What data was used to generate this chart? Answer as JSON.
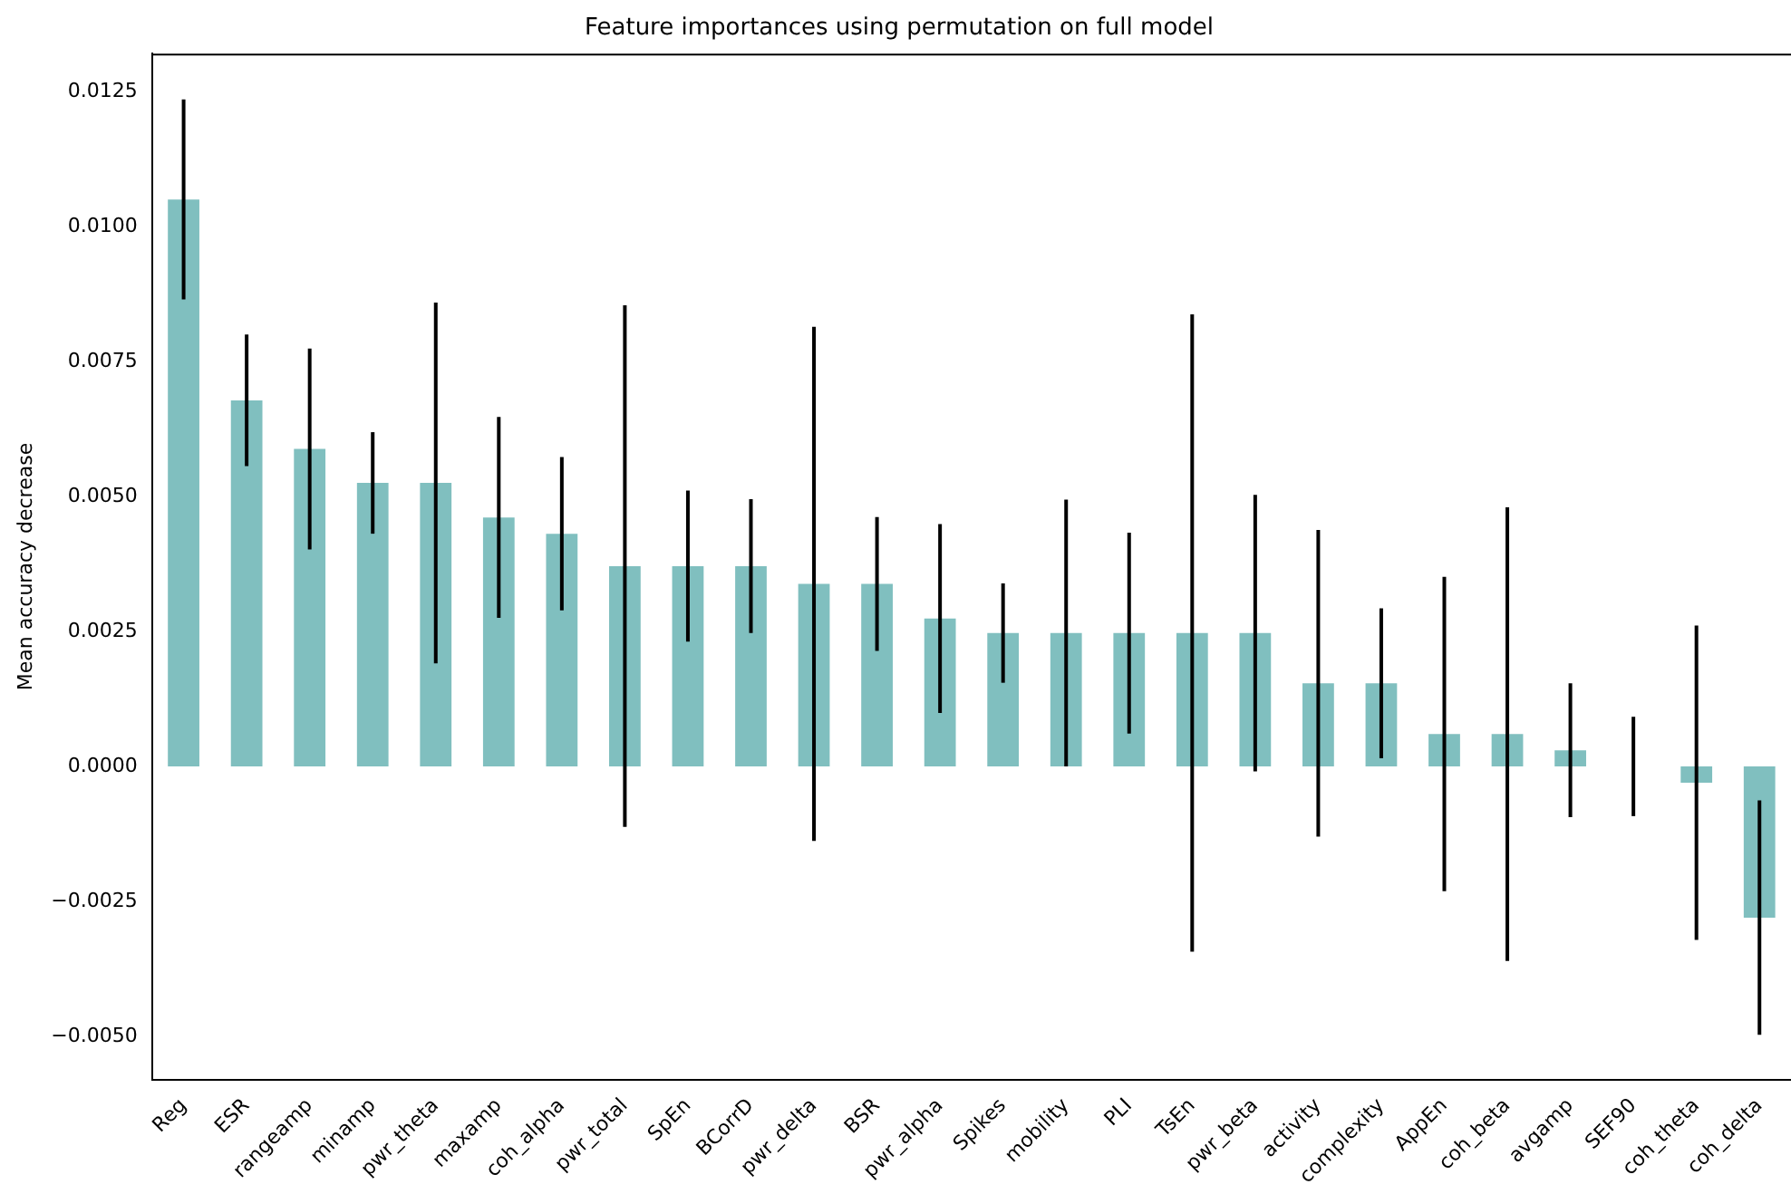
{
  "chart_data": {
    "type": "bar",
    "title": "Feature importances using permutation on full model",
    "ylabel": "Mean accuracy decrease",
    "categories": [
      "Reg",
      "ESR",
      "rangeamp",
      "minamp",
      "pwr_theta",
      "maxamp",
      "coh_alpha",
      "pwr_total",
      "SpEn",
      "BCorrD",
      "pwr_delta",
      "BSR",
      "pwr_alpha",
      "Spikes",
      "mobility",
      "PLI",
      "TsEn",
      "pwr_beta",
      "activity",
      "complexity",
      "AppEn",
      "coh_beta",
      "avgamp",
      "SEF90",
      "coh_theta",
      "coh_delta"
    ],
    "values": [
      0.0105,
      0.00678,
      0.00588,
      0.00525,
      0.00525,
      0.00461,
      0.00431,
      0.00371,
      0.00371,
      0.00371,
      0.00338,
      0.00338,
      0.00274,
      0.00247,
      0.00247,
      0.00247,
      0.00247,
      0.00247,
      0.00154,
      0.00154,
      0.0006,
      0.0006,
      0.0003,
      0,
      -0.0003,
      -0.0028
    ],
    "errors": [
      0.00185,
      0.00122,
      0.00186,
      0.00094,
      0.00334,
      0.00186,
      0.00142,
      0.00483,
      0.0014,
      0.00124,
      0.00476,
      0.00124,
      0.00175,
      0.00092,
      0.00247,
      0.00186,
      0.0059,
      0.00256,
      0.00284,
      0.00139,
      0.00291,
      0.0042,
      0.00124,
      0.00092,
      0.00291,
      0.00217
    ],
    "color": "#80bfbf",
    "ylim": [
      -0.0058,
      0.0132
    ],
    "yticks": [
      {
        "value": -0.005,
        "label": "−0.0050"
      },
      {
        "value": -0.0025,
        "label": "−0.0025"
      },
      {
        "value": 0,
        "label": "0.0000"
      },
      {
        "value": 0.0025,
        "label": "0.0025"
      },
      {
        "value": 0.005,
        "label": "0.0050"
      },
      {
        "value": 0.0075,
        "label": "0.0075"
      },
      {
        "value": 0.01,
        "label": "0.0100"
      },
      {
        "value": 0.0125,
        "label": "0.0125"
      }
    ],
    "grid": false,
    "legend": false
  }
}
